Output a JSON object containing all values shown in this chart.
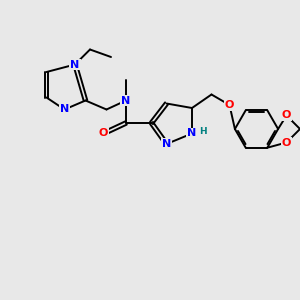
{
  "background_color": "#e8e8e8",
  "bond_color": "#000000",
  "nitrogen_color": "#0000ff",
  "oxygen_color": "#ff0000",
  "hydrogen_color": "#008080",
  "line_width": 1.4,
  "figsize": [
    3.0,
    3.0
  ],
  "dpi": 100,
  "xlim": [
    0,
    10
  ],
  "ylim": [
    0,
    10
  ]
}
